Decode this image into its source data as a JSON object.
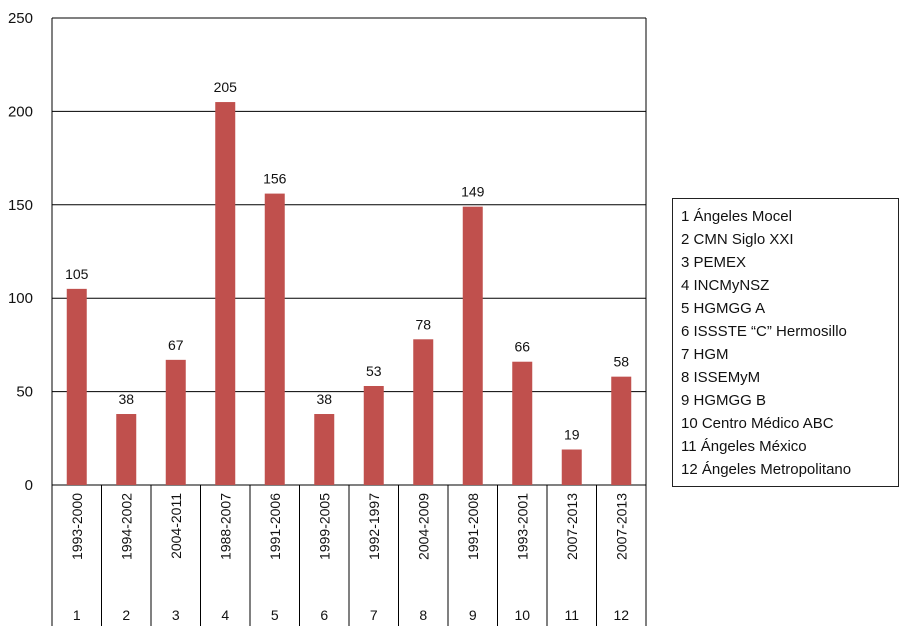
{
  "chart_data": {
    "type": "bar",
    "categories": [
      "1",
      "2",
      "3",
      "4",
      "5",
      "6",
      "7",
      "8",
      "9",
      "10",
      "11",
      "12"
    ],
    "periods": [
      "1993-2000",
      "1994-2002",
      "2004-2011",
      "1988-2007",
      "1991-2006",
      "1999-2005",
      "1992-1997",
      "2004-2009",
      "1991-2008",
      "1993-2001",
      "2007-2013",
      "2007-2013"
    ],
    "values": [
      105,
      38,
      67,
      205,
      156,
      38,
      53,
      78,
      149,
      66,
      19,
      58
    ],
    "data_labels": [
      "105",
      "38",
      "67",
      "205",
      "156",
      "38",
      "53",
      "78",
      "149",
      "66",
      "19",
      "58"
    ],
    "ylim": [
      0,
      250
    ],
    "yticks": [
      0,
      50,
      100,
      150,
      200,
      250
    ],
    "grid": "horizontal",
    "bar_color": "#c0504d",
    "legend_position": "right",
    "legend": [
      "1 Ángeles Mocel",
      "2 CMN Siglo XXI",
      "3 PEMEX",
      "4 INCMyNSZ",
      "5 HGMGG A",
      "6 ISSSTE “C” Hermosillo",
      "7 HGM",
      "8 ISSEMyM",
      "9 HGMGG B",
      "10 Centro Médico ABC",
      "11 Ángeles México",
      "12 Ángeles Metropolitano"
    ]
  }
}
